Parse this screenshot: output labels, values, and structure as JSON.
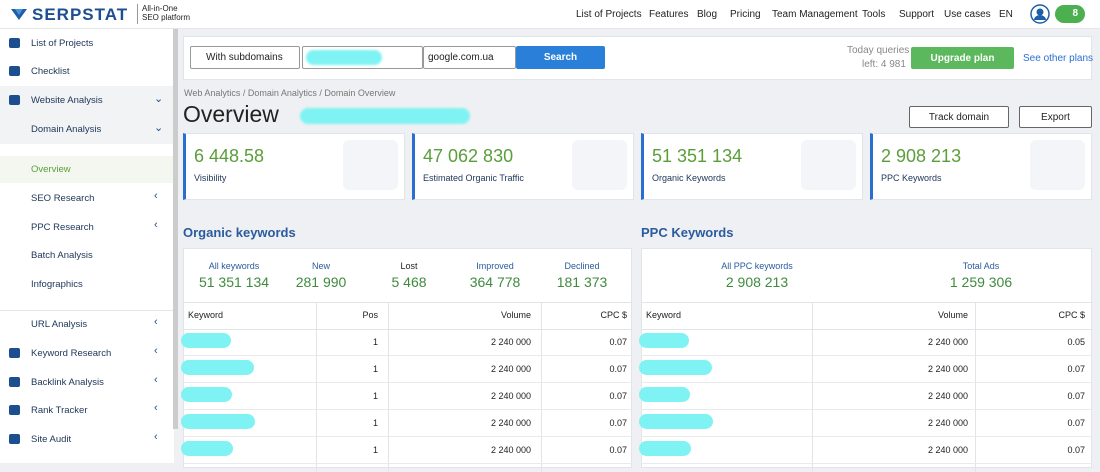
{
  "header": {
    "logo": "SERPSTAT",
    "tagline": [
      "All-in-One",
      "SEO platform"
    ],
    "nav": [
      "List of Projects",
      "Features",
      "Blog",
      "Pricing",
      "Team Management",
      "Tools",
      "Support",
      "Use cases"
    ],
    "language": "EN",
    "notifications": "8"
  },
  "sidebar": [
    "List of Projects",
    "Checklist",
    "Website Analysis",
    "Domain Analysis",
    "Overview",
    "SEO Research",
    "PPC Research",
    "Batch Analysis",
    "Infographics",
    "URL Analysis",
    "Keyword Research",
    "Backlink Analysis",
    "Rank Tracker",
    "Site Audit"
  ],
  "search": {
    "mode": "With subdomains",
    "engine": "google.com.ua",
    "button": "Search",
    "queries": [
      "Today queries",
      "left: 4 981"
    ],
    "upgrade": "Upgrade plan",
    "other_plans": "See other plans"
  },
  "breadcrumb": "Web Analytics / Domain Analytics / Domain Overview",
  "title": "Overview",
  "actions": [
    "Track domain",
    "Export"
  ],
  "cards": [
    {
      "value": "6 448.58",
      "label": "Visibility"
    },
    {
      "value": "47 062 830",
      "label": "Estimated Organic Traffic"
    },
    {
      "value": "51 351 134",
      "label": "Organic Keywords"
    },
    {
      "value": "2 908 213",
      "label": "PPC Keywords"
    }
  ],
  "organic": {
    "title": "Organic keywords",
    "summary": [
      {
        "label": "All keywords",
        "value": "51 351 134"
      },
      {
        "label": "New",
        "value": "281 990"
      },
      {
        "label": "Lost",
        "value": "5 468"
      },
      {
        "label": "Improved",
        "value": "364 778"
      },
      {
        "label": "Declined",
        "value": "181 373"
      }
    ],
    "columns": [
      "Keyword",
      "Pos",
      "Volume",
      "CPC $"
    ],
    "rows": [
      [
        "1",
        "2 240 000",
        "0.07"
      ],
      [
        "1",
        "2 240 000",
        "0.07"
      ],
      [
        "1",
        "2 240 000",
        "0.07"
      ],
      [
        "1",
        "2 240 000",
        "0.07"
      ],
      [
        "1",
        "2 240 000",
        "0.07"
      ]
    ]
  },
  "ppc": {
    "title": "PPC Keywords",
    "summary": [
      {
        "label": "All PPC keywords",
        "value": "2 908 213"
      },
      {
        "label": "Total Ads",
        "value": "1 259 306"
      }
    ],
    "columns": [
      "Keyword",
      "Volume",
      "CPC $"
    ],
    "rows": [
      [
        "2 240 000",
        "0.05"
      ],
      [
        "2 240 000",
        "0.07"
      ],
      [
        "2 240 000",
        "0.07"
      ],
      [
        "2 240 000",
        "0.07"
      ],
      [
        "2 240 000",
        "0.07"
      ]
    ]
  }
}
